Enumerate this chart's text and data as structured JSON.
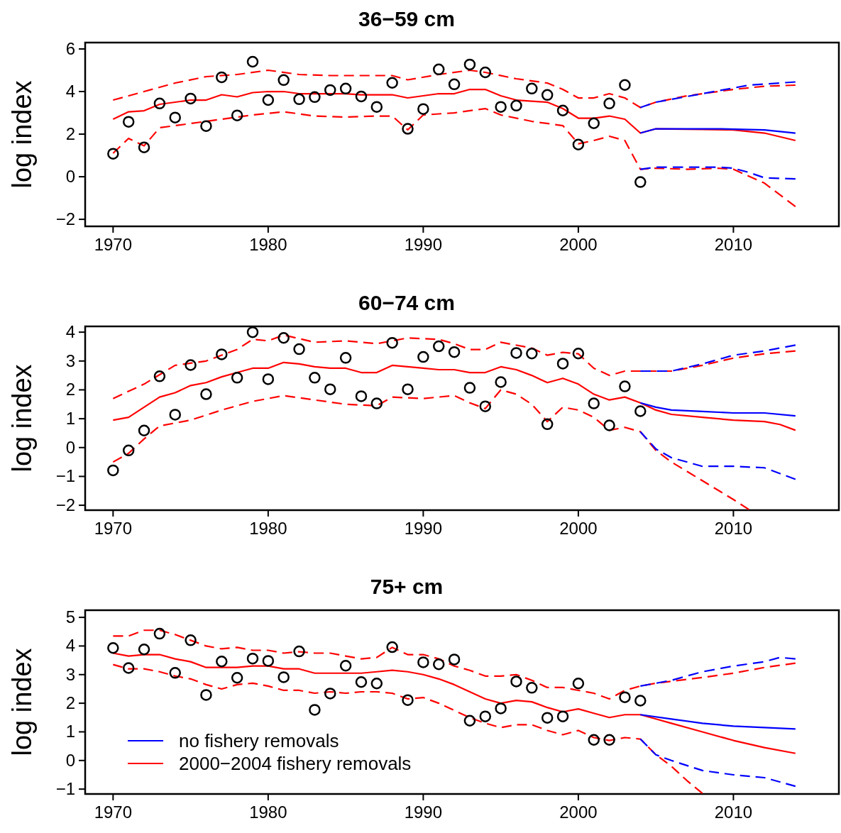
{
  "chart_data": [
    {
      "type": "line",
      "title": "36−59 cm",
      "ylabel": "log index",
      "xlim": [
        1968.2,
        2016.8
      ],
      "ylim": [
        -2.33,
        6.3
      ],
      "xticks": [
        1970,
        1980,
        1990,
        2000,
        2010
      ],
      "yticks": [
        -2,
        0,
        2,
        4,
        6
      ],
      "grid": false,
      "series": [
        {
          "type": "scatter",
          "marker": "circle",
          "color": "#000000",
          "x": [
            1970,
            1971,
            1972,
            1973,
            1974,
            1975,
            1976,
            1977,
            1978,
            1979,
            1980,
            1981,
            1982,
            1983,
            1984,
            1985,
            1986,
            1987,
            1988,
            1989,
            1990,
            1991,
            1992,
            1993,
            1994,
            1995,
            1996,
            1997,
            1998,
            1999,
            2000,
            2001,
            2002,
            2003,
            2004
          ],
          "values": [
            1.08,
            2.58,
            1.38,
            3.44,
            2.78,
            3.67,
            2.38,
            4.67,
            2.88,
            5.4,
            3.6,
            4.54,
            3.64,
            3.74,
            4.07,
            4.14,
            3.77,
            3.28,
            4.41,
            2.25,
            3.18,
            5.04,
            4.34,
            5.27,
            4.9,
            3.28,
            3.34,
            4.14,
            3.84,
            3.11,
            1.51,
            2.51,
            3.44,
            4.31,
            -0.25
          ]
        },
        {
          "type": "line",
          "color": "#0000ff",
          "line_style": "solid",
          "x": [
            2004,
            2005,
            2009,
            2012,
            2014
          ],
          "values": [
            2.05,
            2.25,
            2.25,
            2.2,
            2.05
          ]
        },
        {
          "type": "line",
          "color": "#0000ff",
          "line_style": "dashed",
          "x": [
            2004,
            2005,
            2008,
            2011,
            2014
          ],
          "values": [
            3.25,
            3.5,
            3.9,
            4.3,
            4.45
          ]
        },
        {
          "type": "line",
          "color": "#0000ff",
          "line_style": "dashed",
          "x": [
            2004,
            2005,
            2009,
            2010,
            2011,
            2012,
            2014
          ],
          "values": [
            0.35,
            0.45,
            0.45,
            0.4,
            0.2,
            -0.05,
            -0.1
          ]
        },
        {
          "type": "line",
          "color": "#ff0000",
          "line_style": "solid",
          "x": [
            1970,
            1971,
            1972,
            1973,
            1974,
            1975,
            1976,
            1977,
            1978,
            1979,
            1980,
            1981,
            1982,
            1983,
            1984,
            1985,
            1986,
            1987,
            1988,
            1989,
            1990,
            1991,
            1992,
            1993,
            1994,
            1995,
            1996,
            1997,
            1998,
            1999,
            2000,
            2001,
            2002,
            2003,
            2004,
            2005,
            2008,
            2010,
            2012,
            2014
          ],
          "values": [
            2.7,
            3.05,
            3.1,
            3.4,
            3.5,
            3.6,
            3.6,
            3.85,
            3.75,
            3.95,
            4.0,
            4.0,
            3.9,
            3.9,
            3.9,
            3.9,
            3.85,
            3.85,
            3.85,
            3.7,
            3.8,
            3.9,
            3.9,
            4.1,
            4.1,
            3.8,
            3.6,
            3.55,
            3.5,
            3.2,
            2.75,
            2.75,
            2.85,
            2.7,
            2.05,
            2.25,
            2.22,
            2.2,
            2.05,
            1.7
          ]
        },
        {
          "type": "line",
          "color": "#ff0000",
          "line_style": "dashed",
          "x": [
            1970,
            1972,
            1974,
            1976,
            1978,
            1980,
            1982,
            1984,
            1986,
            1988,
            1989,
            1991,
            1993,
            1994,
            1996,
            1998,
            1999,
            2000,
            2001,
            2002,
            2003,
            2004,
            2005,
            2007,
            2010,
            2012,
            2014
          ],
          "values": [
            3.6,
            4.0,
            4.4,
            4.7,
            4.8,
            5.0,
            4.8,
            4.75,
            4.75,
            4.75,
            4.55,
            4.8,
            5.0,
            4.9,
            4.6,
            4.4,
            4.1,
            3.7,
            3.7,
            3.9,
            3.7,
            3.25,
            3.5,
            3.8,
            4.1,
            4.25,
            4.3
          ]
        },
        {
          "type": "line",
          "color": "#ff0000",
          "line_style": "dashed",
          "x": [
            1970,
            1971,
            1972,
            1973,
            1975,
            1977,
            1979,
            1981,
            1983,
            1985,
            1987,
            1988,
            1989,
            1990,
            1992,
            1994,
            1995,
            1997,
            1999,
            2000,
            2001,
            2002,
            2003,
            2004,
            2005,
            2007,
            2009,
            2010,
            2012,
            2014
          ],
          "values": [
            1.1,
            1.8,
            1.45,
            2.3,
            2.5,
            2.7,
            2.9,
            3.05,
            2.85,
            2.8,
            2.85,
            2.85,
            2.2,
            2.9,
            3.0,
            3.2,
            2.9,
            2.6,
            2.4,
            1.55,
            1.7,
            1.9,
            1.7,
            0.35,
            0.4,
            0.35,
            0.4,
            0.35,
            -0.3,
            -1.4
          ]
        }
      ]
    },
    {
      "type": "line",
      "title": "60−74 cm",
      "ylabel": "log index",
      "xlim": [
        1968.2,
        2016.8
      ],
      "ylim": [
        -2.17,
        4.2
      ],
      "xticks": [
        1970,
        1980,
        1990,
        2000,
        2010
      ],
      "yticks": [
        -2,
        -1,
        0,
        1,
        2,
        3,
        4
      ],
      "grid": false,
      "series": [
        {
          "type": "scatter",
          "marker": "circle",
          "color": "#000000",
          "x": [
            1970,
            1971,
            1972,
            1973,
            1974,
            1975,
            1976,
            1977,
            1978,
            1979,
            1980,
            1981,
            1982,
            1983,
            1984,
            1985,
            1986,
            1987,
            1988,
            1989,
            1990,
            1991,
            1992,
            1993,
            1994,
            1995,
            1996,
            1997,
            1998,
            1999,
            2000,
            2001,
            2002,
            2003,
            2004
          ],
          "values": [
            -0.79,
            -0.1,
            0.59,
            2.47,
            1.14,
            2.86,
            1.85,
            3.23,
            2.42,
            4.0,
            2.37,
            3.8,
            3.41,
            2.42,
            2.02,
            3.11,
            1.78,
            1.53,
            3.63,
            2.02,
            3.14,
            3.51,
            3.31,
            2.07,
            1.43,
            2.27,
            3.28,
            3.26,
            0.81,
            2.91,
            3.26,
            1.53,
            0.77,
            2.12,
            1.26
          ]
        },
        {
          "type": "line",
          "color": "#0000ff",
          "line_style": "solid",
          "x": [
            2004,
            2005,
            2006,
            2008,
            2010,
            2012,
            2014
          ],
          "values": [
            1.55,
            1.4,
            1.3,
            1.25,
            1.2,
            1.2,
            1.1
          ]
        },
        {
          "type": "line",
          "color": "#0000ff",
          "line_style": "dashed",
          "x": [
            2004,
            2006,
            2008,
            2010,
            2012,
            2014
          ],
          "values": [
            2.65,
            2.65,
            2.9,
            3.2,
            3.35,
            3.55
          ]
        },
        {
          "type": "line",
          "color": "#0000ff",
          "line_style": "dashed",
          "x": [
            2004,
            2005,
            2006,
            2008,
            2010,
            2012,
            2014
          ],
          "values": [
            0.55,
            -0.05,
            -0.35,
            -0.65,
            -0.65,
            -0.7,
            -1.1
          ]
        },
        {
          "type": "line",
          "color": "#ff0000",
          "line_style": "solid",
          "x": [
            1970,
            1971,
            1972,
            1973,
            1974,
            1975,
            1976,
            1977,
            1978,
            1979,
            1980,
            1981,
            1982,
            1983,
            1984,
            1985,
            1986,
            1987,
            1988,
            1989,
            1990,
            1991,
            1992,
            1993,
            1994,
            1995,
            1996,
            1997,
            1998,
            1999,
            2000,
            2001,
            2002,
            2003,
            2004,
            2005,
            2006,
            2008,
            2010,
            2012,
            2013,
            2014
          ],
          "values": [
            0.95,
            1.05,
            1.4,
            1.75,
            1.9,
            2.15,
            2.25,
            2.45,
            2.6,
            2.75,
            2.75,
            2.95,
            2.9,
            2.8,
            2.75,
            2.75,
            2.6,
            2.6,
            2.85,
            2.8,
            2.75,
            2.7,
            2.7,
            2.6,
            2.6,
            2.8,
            2.7,
            2.5,
            2.25,
            2.4,
            2.2,
            1.85,
            1.65,
            1.75,
            1.55,
            1.3,
            1.15,
            1.05,
            0.95,
            0.9,
            0.8,
            0.6
          ]
        },
        {
          "type": "line",
          "color": "#ff0000",
          "line_style": "dashed",
          "x": [
            1970,
            1972,
            1974,
            1976,
            1978,
            1979,
            1980,
            1981,
            1983,
            1985,
            1987,
            1989,
            1991,
            1992,
            1993,
            1994,
            1995,
            1997,
            1998,
            1999,
            2000,
            2001,
            2002,
            2003,
            2004,
            2006,
            2008,
            2010,
            2012,
            2014
          ],
          "values": [
            1.7,
            2.2,
            2.85,
            3.0,
            3.4,
            3.75,
            3.7,
            3.9,
            3.65,
            3.7,
            3.6,
            3.8,
            3.75,
            3.6,
            3.4,
            3.4,
            3.65,
            3.45,
            3.2,
            3.3,
            3.25,
            2.75,
            2.5,
            2.65,
            2.65,
            2.65,
            2.85,
            3.1,
            3.25,
            3.35
          ]
        },
        {
          "type": "line",
          "color": "#ff0000",
          "line_style": "dashed",
          "x": [
            1970,
            1971,
            1972,
            1973,
            1975,
            1977,
            1979,
            1981,
            1983,
            1985,
            1987,
            1988,
            1990,
            1992,
            1993,
            1994,
            1995,
            1996,
            1997,
            1998,
            1999,
            2000,
            2001,
            2002,
            2003,
            2004,
            2005,
            2006,
            2008,
            2010,
            2011
          ],
          "values": [
            -0.5,
            -0.2,
            0.3,
            0.75,
            0.95,
            1.3,
            1.6,
            1.8,
            1.65,
            1.5,
            1.45,
            1.75,
            1.7,
            1.8,
            1.55,
            1.35,
            2.0,
            1.85,
            1.5,
            0.9,
            1.4,
            1.3,
            1.05,
            0.6,
            0.7,
            0.55,
            -0.1,
            -0.5,
            -1.15,
            -1.8,
            -2.15
          ]
        }
      ]
    },
    {
      "type": "line",
      "title": "75+ cm",
      "ylabel": "log index",
      "xlim": [
        1968.2,
        2016.8
      ],
      "ylim": [
        -1.17,
        5.25
      ],
      "xticks": [
        1970,
        1980,
        1990,
        2000,
        2010
      ],
      "yticks": [
        -1,
        0,
        1,
        2,
        3,
        4,
        5
      ],
      "grid": false,
      "legend": "bottom left",
      "series": [
        {
          "type": "scatter",
          "marker": "circle",
          "color": "#000000",
          "x": [
            1970,
            1971,
            1972,
            1973,
            1974,
            1975,
            1976,
            1977,
            1978,
            1979,
            1980,
            1981,
            1982,
            1983,
            1984,
            1985,
            1986,
            1987,
            1988,
            1989,
            1990,
            1991,
            1992,
            1993,
            1994,
            1995,
            1996,
            1997,
            1998,
            1999,
            2000,
            2001,
            2002,
            2003,
            2004
          ],
          "values": [
            3.93,
            3.23,
            3.88,
            4.43,
            3.06,
            4.2,
            2.29,
            3.46,
            2.89,
            3.56,
            3.48,
            2.91,
            3.81,
            1.77,
            2.34,
            3.31,
            2.74,
            2.69,
            3.96,
            2.11,
            3.43,
            3.36,
            3.53,
            1.39,
            1.54,
            1.82,
            2.76,
            2.54,
            1.49,
            1.54,
            2.69,
            0.72,
            0.72,
            2.21,
            2.09
          ]
        },
        {
          "type": "line",
          "name": "no fishery removals",
          "color": "#0000ff",
          "line_style": "solid",
          "x": [
            2004,
            2006,
            2008,
            2010,
            2012,
            2014
          ],
          "values": [
            1.6,
            1.45,
            1.3,
            1.2,
            1.15,
            1.1
          ]
        },
        {
          "type": "line",
          "color": "#0000ff",
          "line_style": "dashed",
          "x": [
            2004,
            2006,
            2008,
            2010,
            2012,
            2013,
            2014
          ],
          "values": [
            2.6,
            2.8,
            3.1,
            3.3,
            3.45,
            3.6,
            3.55
          ]
        },
        {
          "type": "line",
          "color": "#0000ff",
          "line_style": "dashed",
          "x": [
            2004,
            2005,
            2006,
            2008,
            2010,
            2012,
            2014
          ],
          "values": [
            0.75,
            0.2,
            0.0,
            -0.35,
            -0.5,
            -0.6,
            -0.9
          ]
        },
        {
          "type": "line",
          "name": "2000−2004 fishery removals",
          "color": "#ff0000",
          "line_style": "solid",
          "x": [
            1970,
            1971,
            1972,
            1973,
            1974,
            1975,
            1976,
            1977,
            1978,
            1979,
            1980,
            1981,
            1982,
            1983,
            1984,
            1985,
            1986,
            1987,
            1988,
            1989,
            1990,
            1991,
            1992,
            1993,
            1994,
            1995,
            1996,
            1997,
            1998,
            1999,
            2000,
            2001,
            2002,
            2003,
            2004,
            2005,
            2006,
            2008,
            2010,
            2012,
            2014
          ],
          "values": [
            3.75,
            3.65,
            3.7,
            3.7,
            3.55,
            3.45,
            3.25,
            3.25,
            3.25,
            3.3,
            3.3,
            3.2,
            3.2,
            3.05,
            3.05,
            3.05,
            3.05,
            3.1,
            3.15,
            3.1,
            3.0,
            2.85,
            2.65,
            2.4,
            2.15,
            2.0,
            2.1,
            2.05,
            1.85,
            1.7,
            1.8,
            1.65,
            1.5,
            1.6,
            1.6,
            1.45,
            1.3,
            1.0,
            0.7,
            0.45,
            0.25
          ]
        },
        {
          "type": "line",
          "color": "#ff0000",
          "line_style": "dashed",
          "x": [
            1970,
            1971,
            1972,
            1973,
            1974,
            1975,
            1976,
            1977,
            1978,
            1979,
            1980,
            1981,
            1982,
            1983,
            1984,
            1985,
            1986,
            1987,
            1988,
            1989,
            1990,
            1991,
            1992,
            1993,
            1994,
            1995,
            1996,
            1997,
            1998,
            1999,
            2000,
            2001,
            2002,
            2003,
            2004,
            2005,
            2008,
            2010,
            2012,
            2014
          ],
          "values": [
            4.35,
            4.35,
            4.55,
            4.55,
            4.4,
            4.2,
            4.0,
            3.9,
            3.95,
            3.85,
            3.85,
            3.75,
            3.8,
            3.75,
            3.75,
            3.65,
            3.55,
            3.6,
            3.95,
            3.7,
            3.7,
            3.55,
            3.3,
            3.15,
            2.95,
            2.95,
            3.0,
            2.8,
            2.55,
            2.55,
            2.45,
            2.35,
            2.15,
            2.45,
            2.6,
            2.7,
            2.9,
            3.05,
            3.25,
            3.4
          ]
        },
        {
          "type": "line",
          "color": "#ff0000",
          "line_style": "dashed",
          "x": [
            1970,
            1971,
            1972,
            1973,
            1974,
            1975,
            1976,
            1977,
            1978,
            1979,
            1980,
            1981,
            1982,
            1983,
            1984,
            1985,
            1986,
            1987,
            1988,
            1989,
            1990,
            1991,
            1992,
            1993,
            1994,
            1995,
            1996,
            1997,
            1998,
            1999,
            2000,
            2001,
            2002,
            2003,
            2004,
            2005,
            2006,
            2007,
            2008
          ],
          "values": [
            3.35,
            3.2,
            3.2,
            3.1,
            2.95,
            2.85,
            2.65,
            2.5,
            2.65,
            2.7,
            2.6,
            2.45,
            2.45,
            2.35,
            2.4,
            2.35,
            2.4,
            2.4,
            2.35,
            2.15,
            2.2,
            2.0,
            1.75,
            1.5,
            1.3,
            1.15,
            1.25,
            1.25,
            1.05,
            0.9,
            1.05,
            0.8,
            0.7,
            0.8,
            0.75,
            0.2,
            -0.2,
            -0.7,
            -1.15
          ]
        }
      ]
    }
  ]
}
